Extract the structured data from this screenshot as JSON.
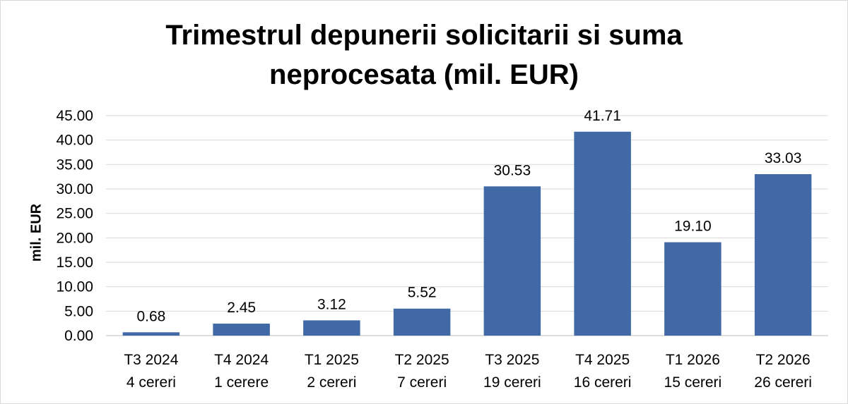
{
  "chart_data": {
    "type": "bar",
    "title_line1": "Trimestrul depunerii solicitarii si suma",
    "title_line2": "neprocesata (mil. EUR)",
    "ylabel": "mil. EUR",
    "xlabel": "",
    "ylim": [
      0,
      45
    ],
    "yticks": [
      "0.00",
      "5.00",
      "10.00",
      "15.00",
      "20.00",
      "25.00",
      "30.00",
      "35.00",
      "40.00",
      "45.00"
    ],
    "categories": [
      [
        "T3 2024",
        "4 cereri"
      ],
      [
        "T4 2024",
        "1 cerere"
      ],
      [
        "T1 2025",
        "2 cereri"
      ],
      [
        "T2 2025",
        "7 cereri"
      ],
      [
        "T3 2025",
        "19 cereri"
      ],
      [
        "T4 2025",
        "16 cereri"
      ],
      [
        "T1 2026",
        "15 cereri"
      ],
      [
        "T2 2026",
        "26 cereri"
      ]
    ],
    "values": [
      0.68,
      2.45,
      3.12,
      5.52,
      30.53,
      41.71,
      19.1,
      33.03
    ],
    "value_labels": [
      "0.68",
      "2.45",
      "3.12",
      "5.52",
      "30.53",
      "41.71",
      "19.10",
      "33.03"
    ],
    "bar_color": "#4069a5",
    "grid": true,
    "legend": "none"
  }
}
